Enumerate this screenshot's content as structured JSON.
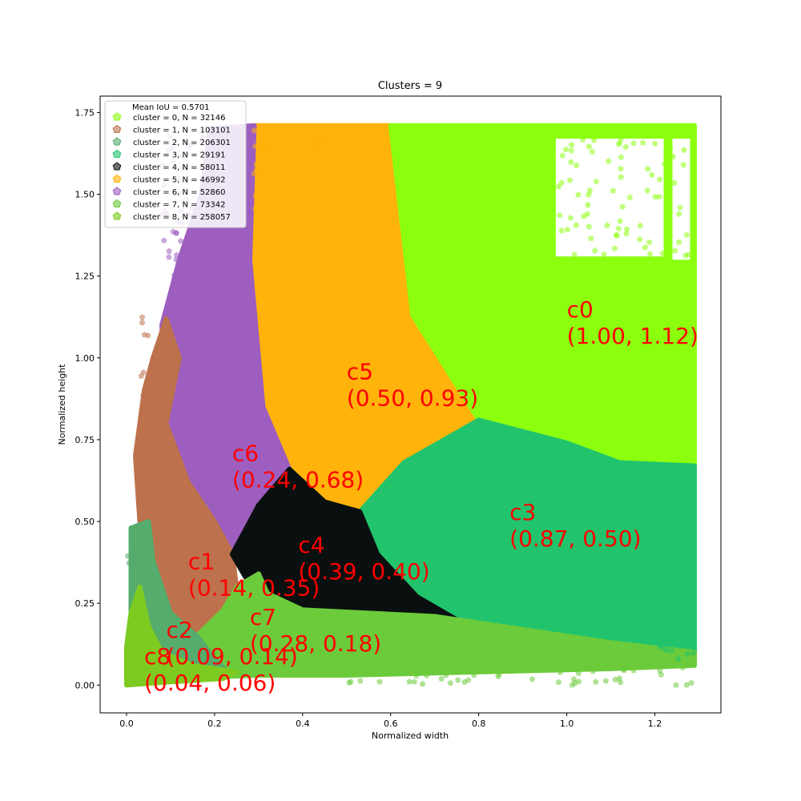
{
  "chart_data": {
    "type": "scatter",
    "title": "Clusters = 9",
    "xlabel": "Normalized width",
    "ylabel": "Normalized height",
    "xlim": [
      -0.06,
      1.35
    ],
    "ylim": [
      -0.085,
      1.8
    ],
    "x_ticks": [
      "0.0",
      "0.2",
      "0.4",
      "0.6",
      "0.8",
      "1.0",
      "1.2"
    ],
    "y_ticks": [
      "0.00",
      "0.25",
      "0.50",
      "0.75",
      "1.00",
      "1.25",
      "1.50",
      "1.75"
    ],
    "grid": false,
    "legend_position": "top-left",
    "legend_title": "Mean IoU = 0.5701",
    "clusters": [
      {
        "id": 0,
        "legend": "cluster = 0, N =  32146",
        "color": "#8cff0f",
        "centroid": [
          1.0,
          1.12
        ],
        "annotation": [
          "c0",
          "(1.00, 1.12)"
        ]
      },
      {
        "id": 1,
        "legend": "cluster = 1, N = 103101",
        "color": "#bd714c",
        "centroid": [
          0.14,
          0.35
        ],
        "annotation": [
          "c1",
          "(0.14, 0.35)"
        ]
      },
      {
        "id": 2,
        "legend": "cluster = 2, N = 206301",
        "color": "#55ac6d",
        "centroid": [
          0.09,
          0.14
        ],
        "annotation": [
          "c2",
          "(0.09, 0.14)"
        ]
      },
      {
        "id": 3,
        "legend": "cluster = 3, N =  29191",
        "color": "#21c46c",
        "centroid": [
          0.87,
          0.5
        ],
        "annotation": [
          "c3",
          "(0.87, 0.50)"
        ]
      },
      {
        "id": 4,
        "legend": "cluster = 4, N =  58011",
        "color": "#0a0f0f",
        "centroid": [
          0.39,
          0.4
        ],
        "annotation": [
          "c4",
          "(0.39, 0.40)"
        ]
      },
      {
        "id": 5,
        "legend": "cluster = 5, N =  46992",
        "color": "#ffb30b",
        "centroid": [
          0.5,
          0.93
        ],
        "annotation": [
          "c5",
          "(0.50, 0.93)"
        ]
      },
      {
        "id": 6,
        "legend": "cluster = 6, N =  52860",
        "color": "#9d5ebf",
        "centroid": [
          0.24,
          0.68
        ],
        "annotation": [
          "c6",
          "(0.24, 0.68)"
        ]
      },
      {
        "id": 7,
        "legend": "cluster = 7, N =  73342",
        "color": "#6ccb3b",
        "centroid": [
          0.28,
          0.18
        ],
        "annotation": [
          "c7",
          "(0.28, 0.18)"
        ]
      },
      {
        "id": 8,
        "legend": "cluster = 8, N = 258057",
        "color": "#7dcb20",
        "centroid": [
          0.04,
          0.06
        ],
        "annotation": [
          "c8",
          "(0.04, 0.06)"
        ]
      }
    ],
    "regions": [
      {
        "cluster": 5,
        "polygon": [
          [
            0.29,
            1.71
          ],
          [
            0.6,
            1.71
          ],
          [
            0.65,
            1.13
          ],
          [
            0.8,
            0.81
          ],
          [
            0.63,
            0.68
          ],
          [
            0.53,
            0.53
          ],
          [
            0.46,
            0.53
          ],
          [
            0.37,
            0.66
          ],
          [
            0.31,
            0.85
          ],
          [
            0.28,
            1.3
          ]
        ]
      },
      {
        "cluster": 0,
        "polygon": [
          [
            0.6,
            1.71
          ],
          [
            1.29,
            1.71
          ],
          [
            1.29,
            0.67
          ],
          [
            1.12,
            0.68
          ],
          [
            1.0,
            0.74
          ],
          [
            0.8,
            0.81
          ],
          [
            0.65,
            1.13
          ]
        ]
      },
      {
        "cluster": 3,
        "polygon": [
          [
            0.8,
            0.81
          ],
          [
            1.0,
            0.74
          ],
          [
            1.12,
            0.68
          ],
          [
            1.29,
            0.67
          ],
          [
            1.29,
            0.1
          ],
          [
            1.1,
            0.13
          ],
          [
            0.9,
            0.17
          ],
          [
            0.75,
            0.2
          ],
          [
            0.66,
            0.27
          ],
          [
            0.57,
            0.4
          ],
          [
            0.53,
            0.53
          ],
          [
            0.63,
            0.68
          ]
        ]
      },
      {
        "cluster": 6,
        "polygon": [
          [
            0.19,
            1.7
          ],
          [
            0.29,
            1.71
          ],
          [
            0.28,
            1.3
          ],
          [
            0.31,
            0.85
          ],
          [
            0.37,
            0.66
          ],
          [
            0.3,
            0.55
          ],
          [
            0.26,
            0.45
          ],
          [
            0.24,
            0.4
          ],
          [
            0.2,
            0.5
          ],
          [
            0.15,
            0.62
          ],
          [
            0.09,
            0.77
          ],
          [
            0.08,
            1.1
          ],
          [
            0.12,
            1.3
          ],
          [
            0.17,
            1.5
          ]
        ]
      },
      {
        "cluster": 1,
        "polygon": [
          [
            0.09,
            1.12
          ],
          [
            0.12,
            1.0
          ],
          [
            0.09,
            0.8
          ],
          [
            0.14,
            0.62
          ],
          [
            0.2,
            0.5
          ],
          [
            0.24,
            0.4
          ],
          [
            0.25,
            0.3
          ],
          [
            0.22,
            0.23
          ],
          [
            0.16,
            0.15
          ],
          [
            0.1,
            0.22
          ],
          [
            0.05,
            0.35
          ],
          [
            0.03,
            0.5
          ],
          [
            0.02,
            0.7
          ],
          [
            0.04,
            0.9
          ],
          [
            0.06,
            1.0
          ]
        ]
      },
      {
        "cluster": 4,
        "polygon": [
          [
            0.37,
            0.66
          ],
          [
            0.45,
            0.56
          ],
          [
            0.53,
            0.53
          ],
          [
            0.57,
            0.4
          ],
          [
            0.66,
            0.27
          ],
          [
            0.75,
            0.2
          ],
          [
            0.7,
            0.21
          ],
          [
            0.55,
            0.22
          ],
          [
            0.4,
            0.23
          ],
          [
            0.32,
            0.28
          ],
          [
            0.27,
            0.33
          ],
          [
            0.24,
            0.4
          ],
          [
            0.26,
            0.45
          ],
          [
            0.3,
            0.55
          ]
        ]
      },
      {
        "cluster": 7,
        "polygon": [
          [
            0.16,
            0.15
          ],
          [
            0.22,
            0.23
          ],
          [
            0.25,
            0.3
          ],
          [
            0.3,
            0.34
          ],
          [
            0.32,
            0.28
          ],
          [
            0.4,
            0.23
          ],
          [
            0.55,
            0.22
          ],
          [
            0.7,
            0.21
          ],
          [
            0.75,
            0.2
          ],
          [
            0.9,
            0.17
          ],
          [
            1.1,
            0.13
          ],
          [
            1.29,
            0.1
          ],
          [
            1.29,
            0.06
          ],
          [
            1.1,
            0.05
          ],
          [
            0.8,
            0.04
          ],
          [
            0.5,
            0.03
          ],
          [
            0.3,
            0.03
          ],
          [
            0.1,
            0.02
          ],
          [
            0.03,
            0.02
          ]
        ]
      },
      {
        "cluster": 2,
        "polygon": [
          [
            0.01,
            0.48
          ],
          [
            0.05,
            0.5
          ],
          [
            0.06,
            0.38
          ],
          [
            0.1,
            0.22
          ],
          [
            0.16,
            0.15
          ],
          [
            0.2,
            0.08
          ],
          [
            0.23,
            0.04
          ],
          [
            0.1,
            0.03
          ],
          [
            0.02,
            0.02
          ],
          [
            0.01,
            0.1
          ],
          [
            0.01,
            0.25
          ]
        ]
      },
      {
        "cluster": 8,
        "polygon": [
          [
            0.0,
            0.0
          ],
          [
            0.0,
            0.12
          ],
          [
            0.01,
            0.22
          ],
          [
            0.03,
            0.3
          ],
          [
            0.05,
            0.18
          ],
          [
            0.08,
            0.1
          ],
          [
            0.15,
            0.06
          ],
          [
            0.25,
            0.04
          ],
          [
            0.22,
            0.02
          ],
          [
            0.1,
            0.01
          ]
        ]
      }
    ]
  }
}
